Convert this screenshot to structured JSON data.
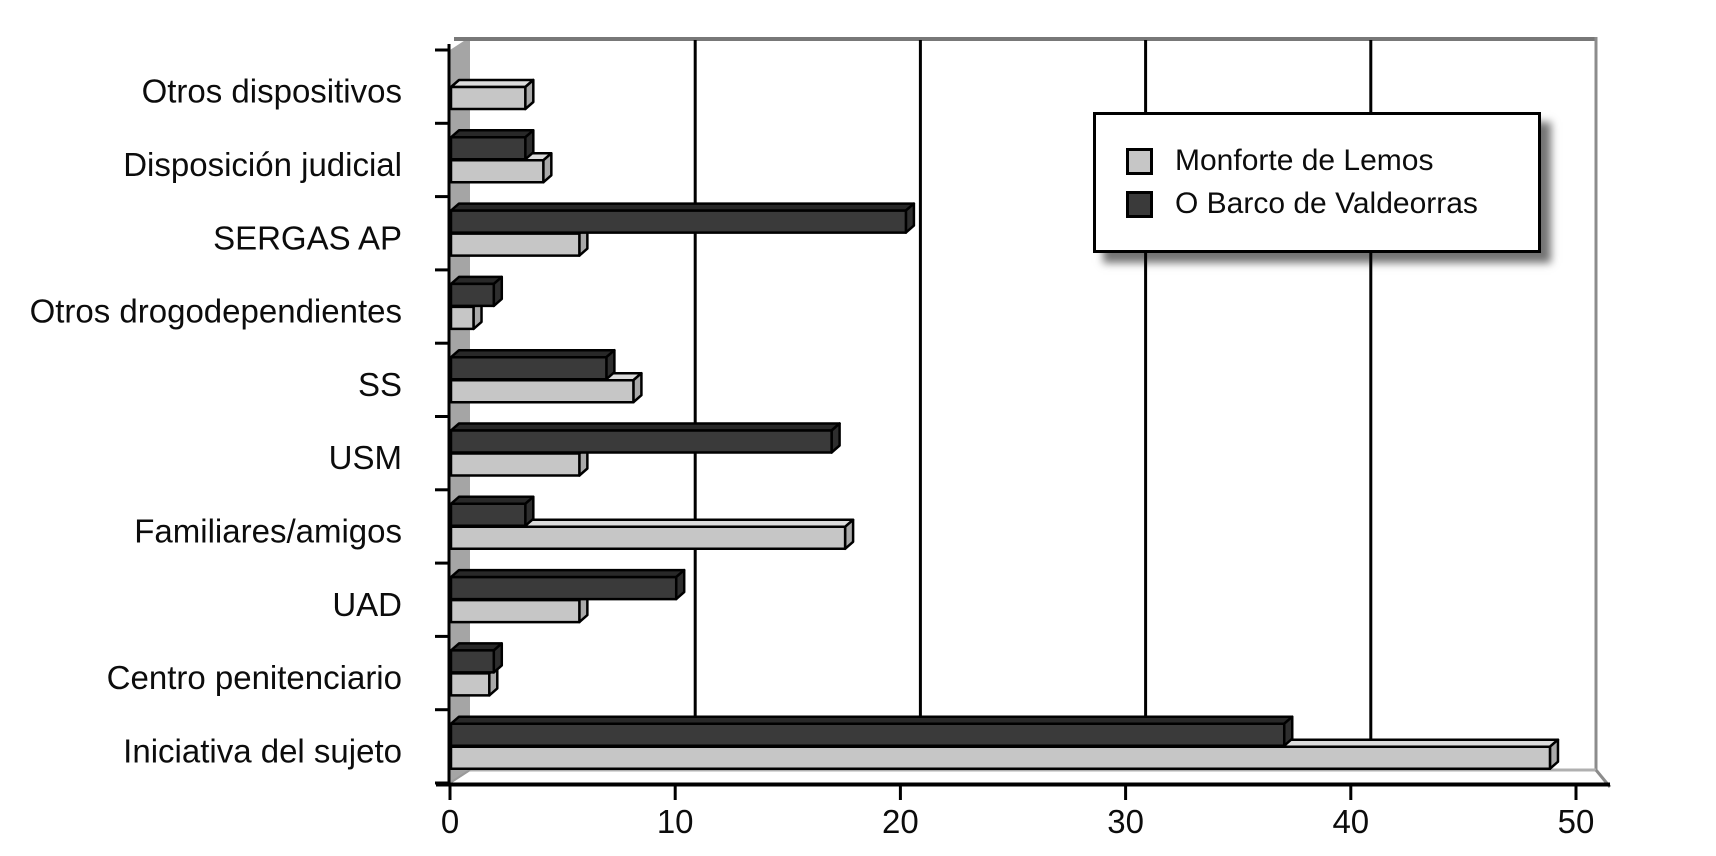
{
  "chart_data": {
    "type": "bar",
    "orientation": "horizontal",
    "style": "3d-extruded",
    "title": "",
    "xlabel": "",
    "ylabel": "",
    "categories": [
      "Otros dispositivos",
      "Disposición judicial",
      "SERGAS AP",
      "Otros drogodependientes",
      "SS",
      "USM",
      "Familiares/amigos",
      "UAD",
      "Centro penitenciario",
      "Iniciativa del sujeto"
    ],
    "series": [
      {
        "name": "Monforte de Lemos",
        "color": "#c6c6c6",
        "color_top": "#dcdcdc",
        "color_side": "#a9a9a9",
        "values": [
          3.3,
          4.1,
          5.7,
          1.0,
          8.1,
          5.7,
          17.5,
          5.7,
          1.7,
          48.8
        ]
      },
      {
        "name": "O Barco de Valdeorras",
        "color": "#3a3a3a",
        "color_top": "#282828",
        "color_side": "#2e2e2e",
        "values": [
          0,
          3.3,
          20.2,
          1.9,
          6.9,
          16.9,
          3.3,
          10.0,
          1.9,
          37.0
        ]
      }
    ],
    "xlim": [
      0,
      50
    ],
    "x_ticks": [
      0,
      10,
      20,
      30,
      40,
      50
    ],
    "grid": true,
    "gridline_color": "#000000",
    "axis_color": "#000000",
    "wall_color": "#a5a5a5",
    "frame_color": "#8c8c8c",
    "background": "#ffffff",
    "legend_position": "top-right"
  }
}
